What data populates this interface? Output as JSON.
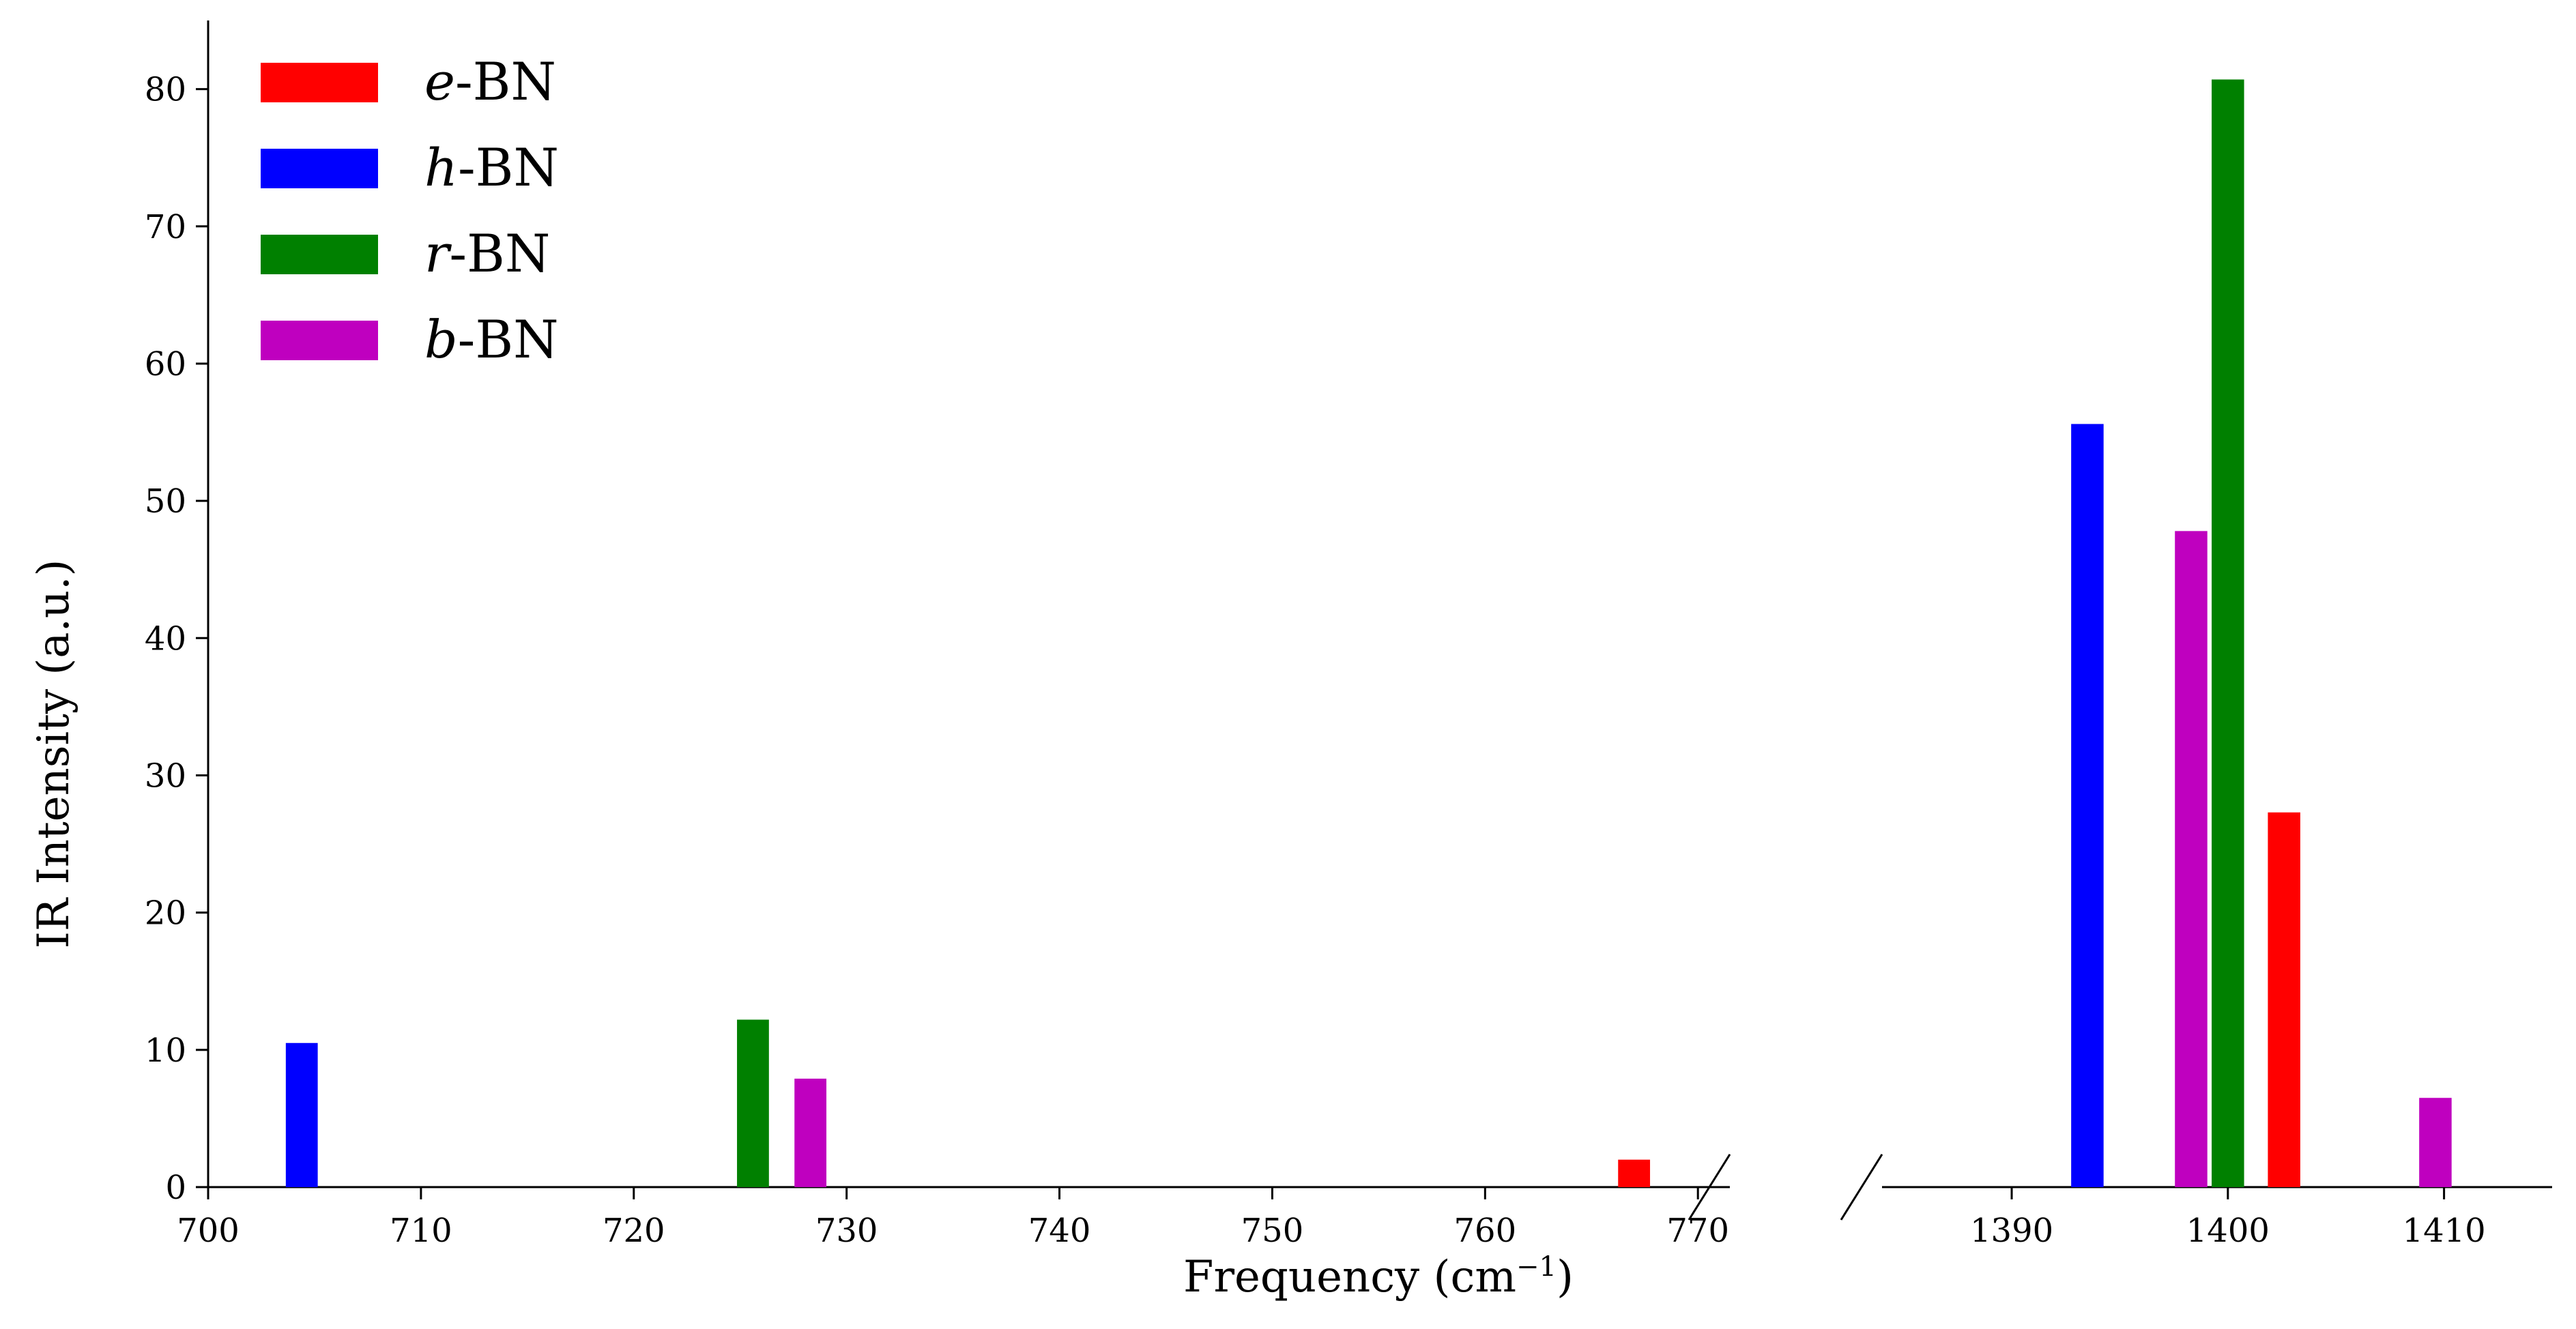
{
  "chart_data": {
    "type": "bar",
    "ylabel": "IR Intensity (a.u.)",
    "xlabel": "Frequency (cm",
    "xlabel_sup": "−1",
    "xlabel_close": ")",
    "ylim": [
      0,
      85
    ],
    "yticks": [
      0,
      10,
      20,
      30,
      40,
      50,
      60,
      70,
      80
    ],
    "broken_x_axis": true,
    "bar_width": 1.5,
    "segments": [
      {
        "xlim": [
          700,
          771.5
        ],
        "xticks": [
          700,
          710,
          720,
          730,
          740,
          750,
          760,
          770
        ]
      },
      {
        "xlim": [
          1384,
          1415
        ],
        "xticks": [
          1390,
          1400,
          1410
        ]
      }
    ],
    "legend_position": "top-left",
    "grid": false,
    "series": [
      {
        "name": "e",
        "suffix": "-BN",
        "color": "#ff0000",
        "points": [
          {
            "x": 767,
            "y": 2.0
          },
          {
            "x": 1402.6,
            "y": 27.3
          }
        ]
      },
      {
        "name": "h",
        "suffix": "-BN",
        "color": "#0000ff",
        "points": [
          {
            "x": 704.4,
            "y": 10.5
          },
          {
            "x": 1393.5,
            "y": 55.6
          }
        ]
      },
      {
        "name": "r",
        "suffix": "-BN",
        "color": "#008000",
        "points": [
          {
            "x": 725.6,
            "y": 12.2
          },
          {
            "x": 1400.0,
            "y": 80.7
          }
        ]
      },
      {
        "name": "b",
        "suffix": "-BN",
        "color": "#bf00bf",
        "points": [
          {
            "x": 728.3,
            "y": 7.9
          },
          {
            "x": 1398.3,
            "y": 47.8
          },
          {
            "x": 1409.6,
            "y": 6.5
          }
        ]
      }
    ]
  }
}
